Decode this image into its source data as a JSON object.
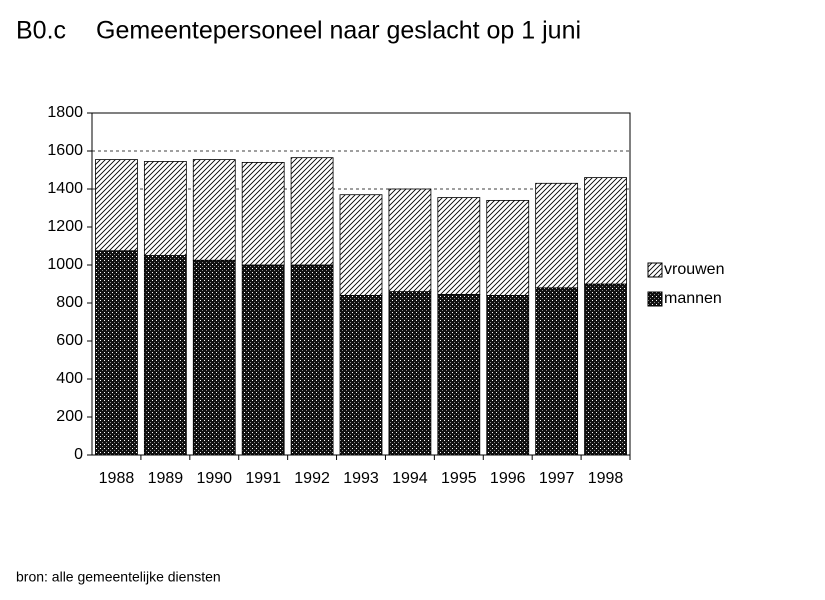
{
  "chart_data": {
    "type": "stacked_bar",
    "label": "B0.c",
    "title": "Gemeentepersoneel naar geslacht op 1 juni",
    "source": "bron: alle gemeentelijke diensten",
    "categories": [
      "1988",
      "1989",
      "1990",
      "1991",
      "1992",
      "1993",
      "1994",
      "1995",
      "1996",
      "1997",
      "1998"
    ],
    "series": [
      {
        "name": "mannen",
        "pattern": "dots",
        "values": [
          1075,
          1050,
          1025,
          1000,
          1000,
          840,
          860,
          845,
          840,
          880,
          900
        ]
      },
      {
        "name": "vrouwen",
        "pattern": "hatch",
        "values": [
          480,
          495,
          530,
          540,
          565,
          530,
          540,
          510,
          500,
          550,
          560
        ]
      }
    ],
    "ylim": [
      0,
      1800
    ],
    "yticks": [
      0,
      200,
      400,
      600,
      800,
      1000,
      1200,
      1400,
      1600,
      1800
    ],
    "grid_values": [
      1400,
      1600
    ],
    "legend": "right"
  }
}
